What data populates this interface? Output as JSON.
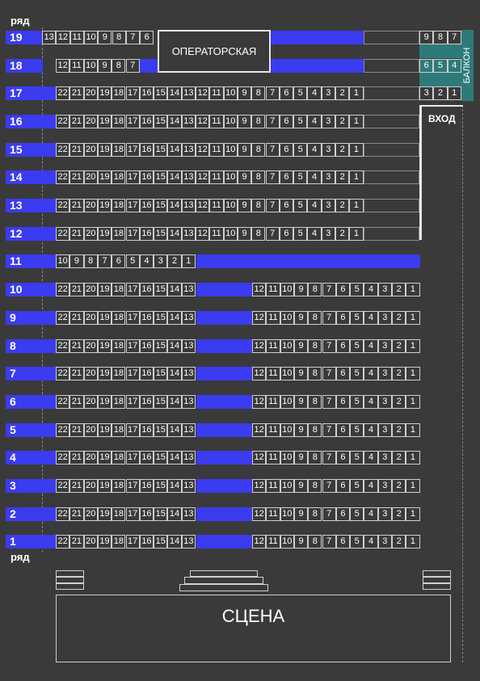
{
  "labels": {
    "row_top": "ряд",
    "row_bottom": "ряд",
    "operator_room": "ОПЕРАТОРСКАЯ",
    "balcony": "БАЛКОН",
    "entrance": "ВХОД",
    "stage": "СЦЕНА"
  },
  "colors": {
    "background": "#3a3a3a",
    "row_band": "#3b3bf0",
    "balcony": "#2e7a7a",
    "seat_border": "#cfcfcf"
  },
  "rows": [
    {
      "row": "19",
      "seats": [
        "13",
        "12",
        "11",
        "10",
        "9",
        "8",
        "7",
        "6"
      ]
    },
    {
      "row": "18",
      "seats": [
        "12",
        "11",
        "10",
        "9",
        "8",
        "7"
      ]
    },
    {
      "row": "17",
      "seats": [
        "22",
        "21",
        "20",
        "19",
        "18",
        "17",
        "16",
        "15",
        "14",
        "13",
        "12",
        "11",
        "10",
        "9",
        "8",
        "7",
        "6",
        "5",
        "4",
        "3",
        "2",
        "1"
      ]
    },
    {
      "row": "16",
      "seats": [
        "22",
        "21",
        "20",
        "19",
        "18",
        "17",
        "16",
        "15",
        "14",
        "13",
        "12",
        "11",
        "10",
        "9",
        "8",
        "7",
        "6",
        "5",
        "4",
        "3",
        "2",
        "1"
      ]
    },
    {
      "row": "15",
      "seats": [
        "22",
        "21",
        "20",
        "19",
        "18",
        "17",
        "16",
        "15",
        "14",
        "13",
        "12",
        "11",
        "10",
        "9",
        "8",
        "7",
        "6",
        "5",
        "4",
        "3",
        "2",
        "1"
      ]
    },
    {
      "row": "14",
      "seats": [
        "22",
        "21",
        "20",
        "19",
        "18",
        "17",
        "16",
        "15",
        "14",
        "13",
        "12",
        "11",
        "10",
        "9",
        "8",
        "7",
        "6",
        "5",
        "4",
        "3",
        "2",
        "1"
      ]
    },
    {
      "row": "13",
      "seats": [
        "22",
        "21",
        "20",
        "19",
        "18",
        "17",
        "16",
        "15",
        "14",
        "13",
        "12",
        "11",
        "10",
        "9",
        "8",
        "7",
        "6",
        "5",
        "4",
        "3",
        "2",
        "1"
      ]
    },
    {
      "row": "12",
      "seats": [
        "22",
        "21",
        "20",
        "19",
        "18",
        "17",
        "16",
        "15",
        "14",
        "13",
        "12",
        "11",
        "10",
        "9",
        "8",
        "7",
        "6",
        "5",
        "4",
        "3",
        "2",
        "1"
      ]
    },
    {
      "row": "11",
      "seats": [
        "10",
        "9",
        "8",
        "7",
        "6",
        "5",
        "4",
        "3",
        "2",
        "1"
      ]
    },
    {
      "row": "10",
      "left": [
        "22",
        "21",
        "20",
        "19",
        "18",
        "17",
        "16",
        "15",
        "14",
        "13"
      ],
      "right": [
        "12",
        "11",
        "10",
        "9",
        "8",
        "7",
        "6",
        "5",
        "4",
        "3",
        "2",
        "1"
      ]
    },
    {
      "row": "9",
      "left": [
        "22",
        "21",
        "20",
        "19",
        "18",
        "17",
        "16",
        "15",
        "14",
        "13"
      ],
      "right": [
        "12",
        "11",
        "10",
        "9",
        "8",
        "7",
        "6",
        "5",
        "4",
        "3",
        "2",
        "1"
      ]
    },
    {
      "row": "8",
      "left": [
        "22",
        "21",
        "20",
        "19",
        "18",
        "17",
        "16",
        "15",
        "14",
        "13"
      ],
      "right": [
        "12",
        "11",
        "10",
        "9",
        "8",
        "7",
        "6",
        "5",
        "4",
        "3",
        "2",
        "1"
      ]
    },
    {
      "row": "7",
      "left": [
        "22",
        "21",
        "20",
        "19",
        "18",
        "17",
        "16",
        "15",
        "14",
        "13"
      ],
      "right": [
        "12",
        "11",
        "10",
        "9",
        "8",
        "7",
        "6",
        "5",
        "4",
        "3",
        "2",
        "1"
      ]
    },
    {
      "row": "6",
      "left": [
        "22",
        "21",
        "20",
        "19",
        "18",
        "17",
        "16",
        "15",
        "14",
        "13"
      ],
      "right": [
        "12",
        "11",
        "10",
        "9",
        "8",
        "7",
        "6",
        "5",
        "4",
        "3",
        "2",
        "1"
      ]
    },
    {
      "row": "5",
      "left": [
        "22",
        "21",
        "20",
        "19",
        "18",
        "17",
        "16",
        "15",
        "14",
        "13"
      ],
      "right": [
        "12",
        "11",
        "10",
        "9",
        "8",
        "7",
        "6",
        "5",
        "4",
        "3",
        "2",
        "1"
      ]
    },
    {
      "row": "4",
      "left": [
        "22",
        "21",
        "20",
        "19",
        "18",
        "17",
        "16",
        "15",
        "14",
        "13"
      ],
      "right": [
        "12",
        "11",
        "10",
        "9",
        "8",
        "7",
        "6",
        "5",
        "4",
        "3",
        "2",
        "1"
      ]
    },
    {
      "row": "3",
      "left": [
        "22",
        "21",
        "20",
        "19",
        "18",
        "17",
        "16",
        "15",
        "14",
        "13"
      ],
      "right": [
        "12",
        "11",
        "10",
        "9",
        "8",
        "7",
        "6",
        "5",
        "4",
        "3",
        "2",
        "1"
      ]
    },
    {
      "row": "2",
      "left": [
        "22",
        "21",
        "20",
        "19",
        "18",
        "17",
        "16",
        "15",
        "14",
        "13"
      ],
      "right": [
        "12",
        "11",
        "10",
        "9",
        "8",
        "7",
        "6",
        "5",
        "4",
        "3",
        "2",
        "1"
      ]
    },
    {
      "row": "1",
      "left": [
        "22",
        "21",
        "20",
        "19",
        "18",
        "17",
        "16",
        "15",
        "14",
        "13"
      ],
      "right": [
        "12",
        "11",
        "10",
        "9",
        "8",
        "7",
        "6",
        "5",
        "4",
        "3",
        "2",
        "1"
      ]
    }
  ],
  "balcony_rows": [
    [
      "9",
      "8",
      "7"
    ],
    [
      "6",
      "5",
      "4"
    ],
    [
      "3",
      "2",
      "1"
    ]
  ]
}
